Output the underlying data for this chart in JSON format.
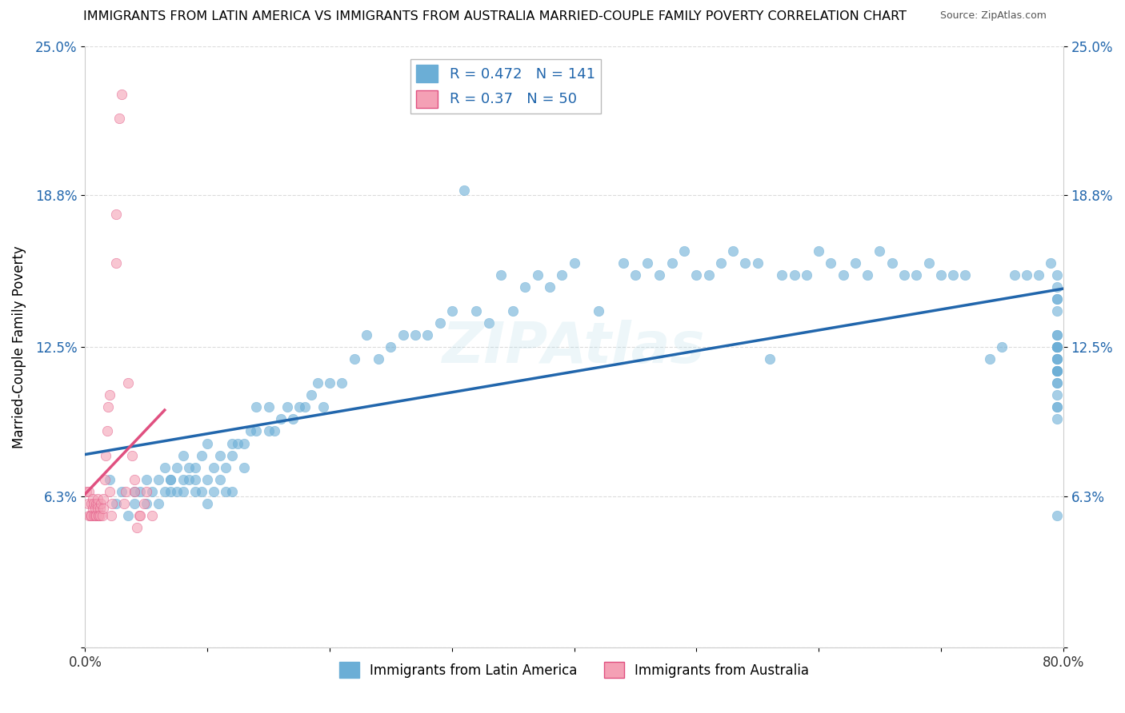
{
  "title": "IMMIGRANTS FROM LATIN AMERICA VS IMMIGRANTS FROM AUSTRALIA MARRIED-COUPLE FAMILY POVERTY CORRELATION CHART",
  "source": "Source: ZipAtlas.com",
  "ylabel": "Married-Couple Family Poverty",
  "legend_label_blue": "Immigrants from Latin America",
  "legend_label_pink": "Immigrants from Australia",
  "R_blue": 0.472,
  "N_blue": 141,
  "R_pink": 0.37,
  "N_pink": 50,
  "xlim": [
    0.0,
    0.8
  ],
  "ylim": [
    0.0,
    0.25
  ],
  "ytick_positions": [
    0.0,
    0.063,
    0.125,
    0.188,
    0.25
  ],
  "ytick_labels": [
    "",
    "6.3%",
    "12.5%",
    "18.8%",
    "25.0%"
  ],
  "color_blue": "#6baed6",
  "color_pink": "#f4a0b5",
  "color_blue_line": "#2166ac",
  "color_pink_line": "#e05080",
  "background_color": "#ffffff",
  "grid_color": "#cccccc",
  "title_color": "#000000",
  "axis_label_color": "#000000",
  "blue_scatter_x": [
    0.02,
    0.025,
    0.03,
    0.035,
    0.04,
    0.04,
    0.045,
    0.05,
    0.05,
    0.055,
    0.06,
    0.06,
    0.065,
    0.065,
    0.07,
    0.07,
    0.07,
    0.075,
    0.075,
    0.08,
    0.08,
    0.08,
    0.085,
    0.085,
    0.09,
    0.09,
    0.09,
    0.095,
    0.095,
    0.1,
    0.1,
    0.1,
    0.105,
    0.105,
    0.11,
    0.11,
    0.115,
    0.115,
    0.12,
    0.12,
    0.12,
    0.125,
    0.13,
    0.13,
    0.135,
    0.14,
    0.14,
    0.15,
    0.15,
    0.155,
    0.16,
    0.165,
    0.17,
    0.175,
    0.18,
    0.185,
    0.19,
    0.195,
    0.2,
    0.21,
    0.22,
    0.23,
    0.24,
    0.25,
    0.26,
    0.27,
    0.28,
    0.29,
    0.3,
    0.31,
    0.32,
    0.33,
    0.34,
    0.35,
    0.36,
    0.37,
    0.38,
    0.39,
    0.4,
    0.42,
    0.44,
    0.45,
    0.46,
    0.47,
    0.48,
    0.49,
    0.5,
    0.51,
    0.52,
    0.53,
    0.54,
    0.55,
    0.56,
    0.57,
    0.58,
    0.59,
    0.6,
    0.61,
    0.62,
    0.63,
    0.64,
    0.65,
    0.66,
    0.67,
    0.68,
    0.69,
    0.7,
    0.71,
    0.72,
    0.74,
    0.75,
    0.76,
    0.77,
    0.78,
    0.79,
    0.795,
    0.795,
    0.795,
    0.795,
    0.795,
    0.795,
    0.795,
    0.795,
    0.795,
    0.795,
    0.795,
    0.795,
    0.795,
    0.795,
    0.795,
    0.795,
    0.795,
    0.795,
    0.795,
    0.795,
    0.795,
    0.795,
    0.795,
    0.795,
    0.795,
    0.795
  ],
  "blue_scatter_y": [
    0.07,
    0.06,
    0.065,
    0.055,
    0.06,
    0.065,
    0.065,
    0.06,
    0.07,
    0.065,
    0.07,
    0.06,
    0.065,
    0.075,
    0.07,
    0.07,
    0.065,
    0.075,
    0.065,
    0.07,
    0.065,
    0.08,
    0.075,
    0.07,
    0.07,
    0.075,
    0.065,
    0.08,
    0.065,
    0.085,
    0.07,
    0.06,
    0.075,
    0.065,
    0.08,
    0.07,
    0.075,
    0.065,
    0.08,
    0.085,
    0.065,
    0.085,
    0.085,
    0.075,
    0.09,
    0.09,
    0.1,
    0.09,
    0.1,
    0.09,
    0.095,
    0.1,
    0.095,
    0.1,
    0.1,
    0.105,
    0.11,
    0.1,
    0.11,
    0.11,
    0.12,
    0.13,
    0.12,
    0.125,
    0.13,
    0.13,
    0.13,
    0.135,
    0.14,
    0.19,
    0.14,
    0.135,
    0.155,
    0.14,
    0.15,
    0.155,
    0.15,
    0.155,
    0.16,
    0.14,
    0.16,
    0.155,
    0.16,
    0.155,
    0.16,
    0.165,
    0.155,
    0.155,
    0.16,
    0.165,
    0.16,
    0.16,
    0.12,
    0.155,
    0.155,
    0.155,
    0.165,
    0.16,
    0.155,
    0.16,
    0.155,
    0.165,
    0.16,
    0.155,
    0.155,
    0.16,
    0.155,
    0.155,
    0.155,
    0.12,
    0.125,
    0.155,
    0.155,
    0.155,
    0.16,
    0.1,
    0.105,
    0.11,
    0.115,
    0.12,
    0.125,
    0.13,
    0.125,
    0.115,
    0.115,
    0.12,
    0.115,
    0.125,
    0.1,
    0.125,
    0.12,
    0.125,
    0.095,
    0.11,
    0.14,
    0.13,
    0.155,
    0.145,
    0.15,
    0.145,
    0.055
  ],
  "pink_scatter_x": [
    0.001,
    0.002,
    0.003,
    0.003,
    0.004,
    0.005,
    0.005,
    0.006,
    0.006,
    0.007,
    0.007,
    0.008,
    0.008,
    0.009,
    0.009,
    0.01,
    0.01,
    0.01,
    0.011,
    0.011,
    0.012,
    0.012,
    0.013,
    0.014,
    0.015,
    0.015,
    0.016,
    0.017,
    0.018,
    0.019,
    0.02,
    0.02,
    0.021,
    0.022,
    0.025,
    0.025,
    0.028,
    0.03,
    0.032,
    0.033,
    0.035,
    0.038,
    0.04,
    0.04,
    0.042,
    0.044,
    0.045,
    0.048,
    0.05,
    0.055
  ],
  "pink_scatter_y": [
    0.065,
    0.06,
    0.065,
    0.055,
    0.055,
    0.06,
    0.055,
    0.058,
    0.062,
    0.055,
    0.06,
    0.055,
    0.058,
    0.06,
    0.055,
    0.06,
    0.058,
    0.062,
    0.055,
    0.055,
    0.058,
    0.055,
    0.06,
    0.055,
    0.058,
    0.062,
    0.07,
    0.08,
    0.09,
    0.1,
    0.105,
    0.065,
    0.055,
    0.06,
    0.16,
    0.18,
    0.22,
    0.23,
    0.06,
    0.065,
    0.11,
    0.08,
    0.065,
    0.07,
    0.05,
    0.055,
    0.055,
    0.06,
    0.065,
    0.055
  ]
}
